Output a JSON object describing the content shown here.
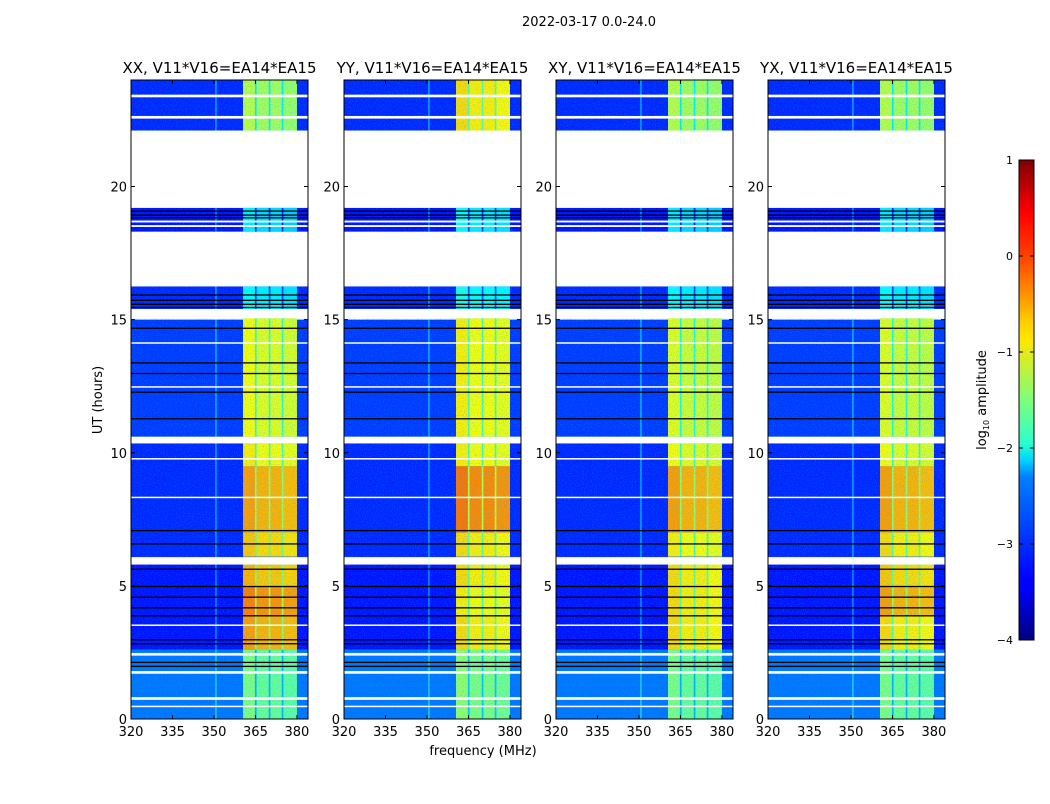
{
  "chart_data": {
    "type": "heatmap",
    "title": "2022-03-17 0.0-24.0",
    "xlabel": "frequency (MHz)",
    "ylabel": "UT (hours)",
    "xlim": [
      320,
      384
    ],
    "ylim": [
      0,
      24
    ],
    "xticks": [
      320,
      335,
      350,
      365,
      380
    ],
    "yticks": [
      0,
      5,
      10,
      15,
      20
    ],
    "colorbar": {
      "label": "log10 amplitude",
      "label_main": "log",
      "label_sub": "10",
      "label_rest": " amplitude",
      "colormap": "jet",
      "range": [
        -4,
        1
      ],
      "ticks": [
        1,
        0,
        -1,
        -2,
        -3,
        -4
      ],
      "tick_labels": [
        "1",
        "0",
        "−1",
        "−2",
        "−3",
        "−4"
      ]
    },
    "background_level": [
      [
        0,
        2.6,
        -2.8
      ],
      [
        2.6,
        6.1,
        -3.3
      ],
      [
        6.1,
        10.4,
        -3.2
      ],
      [
        10.6,
        15.0,
        -3.1
      ],
      [
        15.4,
        16.25,
        -3.2
      ],
      [
        18.3,
        19.2,
        -3.3
      ],
      [
        22.1,
        24,
        -3.2
      ]
    ],
    "rfi_subbands_mhz": [
      [
        360.5,
        364.8
      ],
      [
        365.4,
        369.8
      ],
      [
        370.4,
        374.5
      ],
      [
        375.1,
        380.0
      ]
    ],
    "narrow_line_mhz": 350.5,
    "flagged_ranges_hours": [
      [
        19.2,
        22.1
      ],
      [
        16.25,
        18.3
      ],
      [
        15.05,
        15.4
      ],
      [
        10.35,
        10.6
      ],
      [
        5.8,
        6.08
      ],
      [
        2.38,
        2.48
      ],
      [
        1.7,
        1.8
      ],
      [
        0.72,
        0.82
      ],
      [
        0.45,
        0.5
      ],
      [
        23.35,
        23.45
      ],
      [
        22.55,
        22.65
      ],
      [
        18.65,
        18.72
      ],
      [
        18.48,
        18.55
      ],
      [
        14.1,
        14.15
      ],
      [
        12.45,
        12.5
      ],
      [
        9.75,
        9.8
      ],
      [
        8.3,
        8.35
      ],
      [
        3.5,
        3.55
      ]
    ],
    "dropout_lines_hours": [
      19.1,
      18.95,
      18.85,
      15.95,
      15.75,
      15.6,
      15.48,
      14.7,
      13.4,
      13.0,
      12.3,
      11.3,
      7.1,
      6.6,
      5.65,
      5.0,
      4.6,
      4.2,
      3.9,
      3.0,
      2.85,
      2.15,
      2.0
    ],
    "panels": [
      {
        "title": "XX, V11*V16=EA14*EA15",
        "band_level": [
          [
            0,
            2.6,
            -1.6
          ],
          [
            2.6,
            3.9,
            -0.5
          ],
          [
            3.9,
            5.0,
            -0.35
          ],
          [
            5.0,
            5.8,
            -0.6
          ],
          [
            6.1,
            7.0,
            -0.7
          ],
          [
            7.0,
            9.5,
            -0.5
          ],
          [
            9.5,
            10.35,
            -0.9
          ],
          [
            10.6,
            15.05,
            -1.0
          ],
          [
            15.4,
            16.25,
            -2.2
          ],
          [
            18.3,
            19.2,
            -2.3
          ],
          [
            22.1,
            24,
            -1.3
          ]
        ]
      },
      {
        "title": "YY, V11*V16=EA14*EA15",
        "band_level": [
          [
            0,
            2.6,
            -1.5
          ],
          [
            2.6,
            3.9,
            -0.8
          ],
          [
            3.9,
            5.0,
            -0.9
          ],
          [
            5.0,
            5.8,
            -0.8
          ],
          [
            6.1,
            7.0,
            -0.8
          ],
          [
            7.0,
            9.5,
            -0.3
          ],
          [
            9.5,
            10.35,
            -0.9
          ],
          [
            10.6,
            15.05,
            -0.9
          ],
          [
            15.4,
            16.25,
            -2.1
          ],
          [
            18.3,
            19.2,
            -2.2
          ],
          [
            22.1,
            24,
            -0.8
          ]
        ]
      },
      {
        "title": "XY, V11*V16=EA14*EA15",
        "band_level": [
          [
            0,
            2.6,
            -1.6
          ],
          [
            2.6,
            3.9,
            -0.8
          ],
          [
            3.9,
            5.0,
            -0.8
          ],
          [
            5.0,
            5.8,
            -0.8
          ],
          [
            6.1,
            7.0,
            -0.9
          ],
          [
            7.0,
            9.5,
            -0.5
          ],
          [
            9.5,
            10.35,
            -1.0
          ],
          [
            10.6,
            15.05,
            -1.1
          ],
          [
            15.4,
            16.25,
            -2.2
          ],
          [
            18.3,
            19.2,
            -2.3
          ],
          [
            22.1,
            24,
            -1.3
          ]
        ]
      },
      {
        "title": "YX, V11*V16=EA14*EA15",
        "band_level": [
          [
            0,
            2.6,
            -1.6
          ],
          [
            2.6,
            3.9,
            -0.8
          ],
          [
            3.9,
            5.0,
            -0.5
          ],
          [
            5.0,
            5.8,
            -0.7
          ],
          [
            6.1,
            7.0,
            -0.8
          ],
          [
            7.0,
            9.5,
            -0.5
          ],
          [
            9.5,
            10.35,
            -1.0
          ],
          [
            10.6,
            15.05,
            -1.1
          ],
          [
            15.4,
            16.25,
            -2.2
          ],
          [
            18.3,
            19.2,
            -2.3
          ],
          [
            22.1,
            24,
            -1.3
          ]
        ]
      }
    ]
  }
}
